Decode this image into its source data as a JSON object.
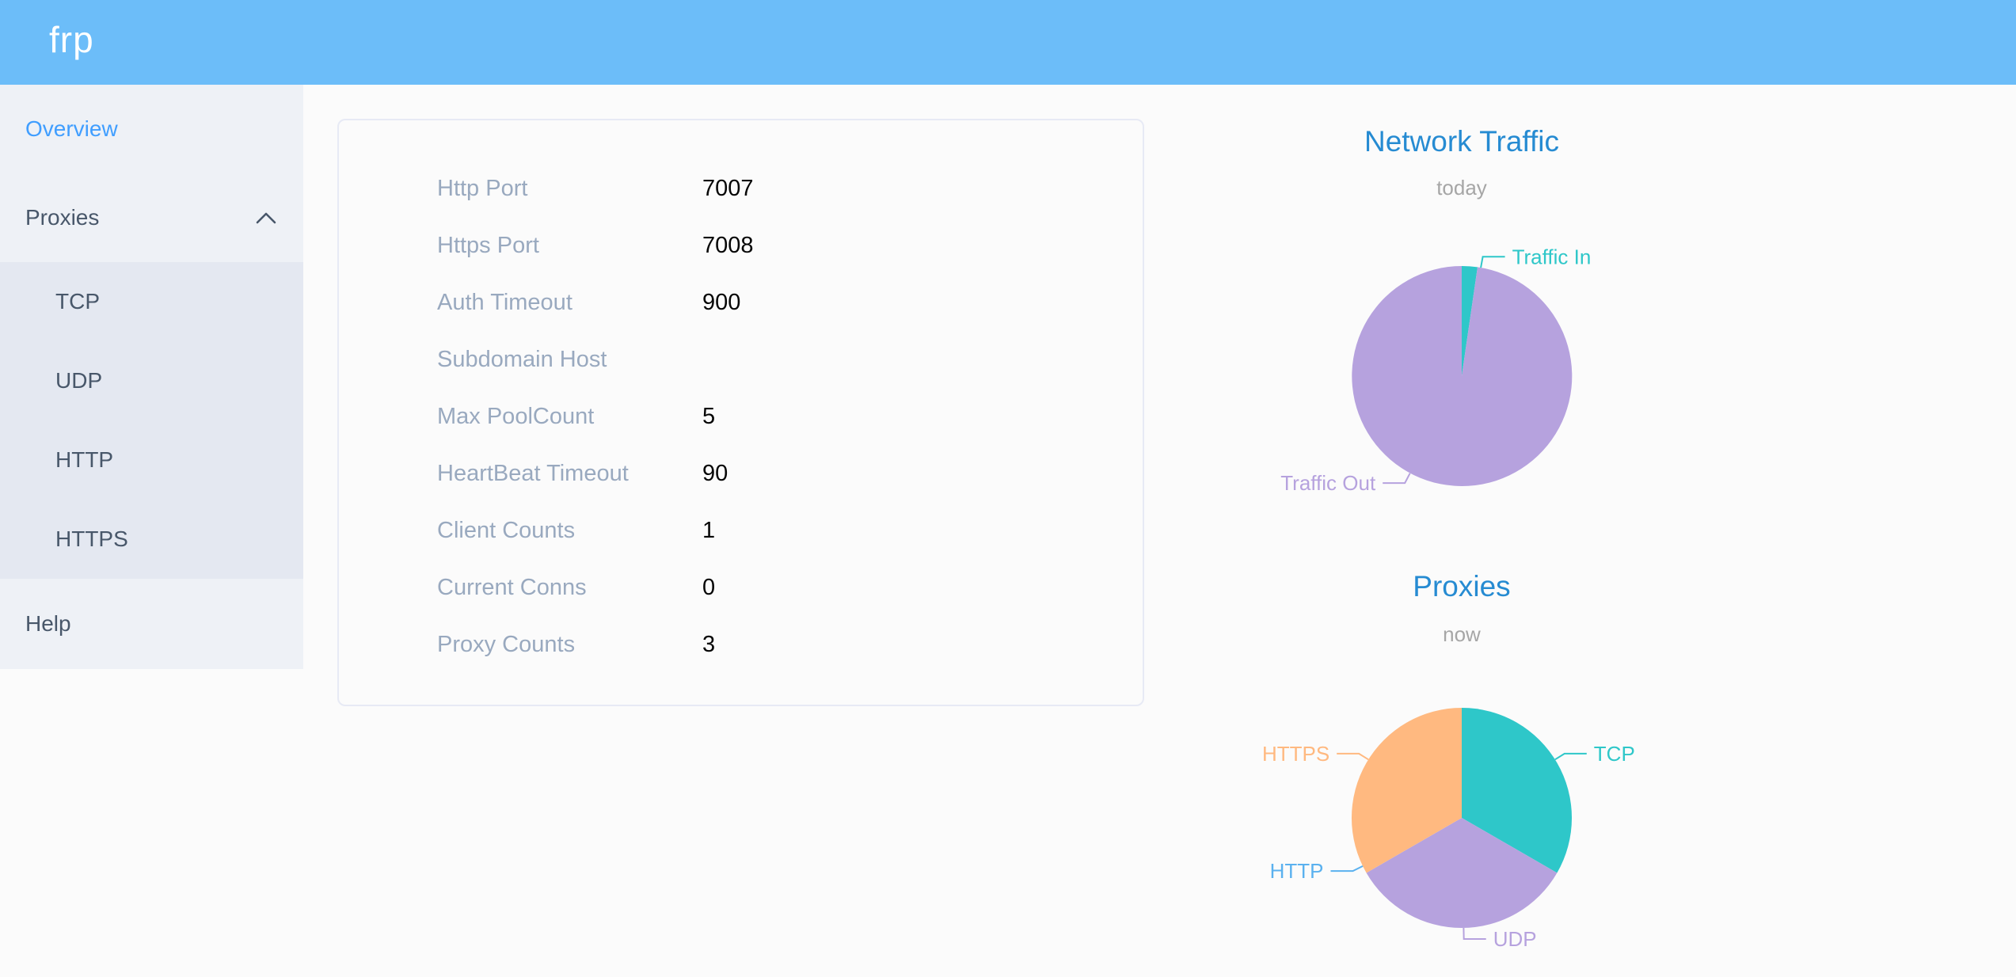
{
  "header": {
    "logo": "frp"
  },
  "icons": {
    "proxies_collapse": "chevron-up"
  },
  "colors": {
    "header_bg": "#6cbdf9",
    "sidebar_bg": "#eef1f6",
    "submenu_bg": "#e4e8f1",
    "menu_text": "#48576a",
    "menu_active": "#409eff",
    "chart_title": "#268bd2",
    "teal": "#2ec7c9",
    "purple": "#b6a2de",
    "blue": "#5ab1ef",
    "orange": "#ffb980"
  },
  "sidebar": {
    "items": [
      {
        "id": "overview",
        "label": "Overview",
        "active": true
      },
      {
        "id": "proxies",
        "label": "Proxies",
        "expanded": true,
        "children": [
          "TCP",
          "UDP",
          "HTTP",
          "HTTPS"
        ]
      },
      {
        "id": "help",
        "label": "Help"
      }
    ]
  },
  "server_info": {
    "rows": [
      {
        "label": "Http Port",
        "value": "7007"
      },
      {
        "label": "Https Port",
        "value": "7008"
      },
      {
        "label": "Auth Timeout",
        "value": "900"
      },
      {
        "label": "Subdomain Host",
        "value": ""
      },
      {
        "label": "Max PoolCount",
        "value": "5"
      },
      {
        "label": "HeartBeat Timeout",
        "value": "90"
      },
      {
        "label": "Client Counts",
        "value": "1"
      },
      {
        "label": "Current Conns",
        "value": "0"
      },
      {
        "label": "Proxy Counts",
        "value": "3"
      }
    ]
  },
  "chart_data": [
    {
      "type": "pie",
      "title": "Network Traffic",
      "subtitle": "today",
      "legend_position": "none",
      "value_unit": "percent-of-total (estimated from slice angles)",
      "slices": [
        {
          "label": "Traffic In",
          "value": 2.3,
          "color": "#2ec7c9",
          "label_angle": 10
        },
        {
          "label": "Traffic Out",
          "value": 97.7,
          "color": "#b6a2de",
          "label_angle": 208
        }
      ]
    },
    {
      "type": "pie",
      "title": "Proxies",
      "subtitle": "now",
      "legend_position": "none",
      "value_unit": "proxy count",
      "slices": [
        {
          "label": "TCP",
          "value": 1,
          "color": "#2ec7c9",
          "label_angle": 58
        },
        {
          "label": "UDP",
          "value": 1,
          "color": "#b6a2de",
          "label_angle": 179
        },
        {
          "label": "HTTP",
          "value": 0,
          "color": "#5ab1ef",
          "label_angle": 244
        },
        {
          "label": "HTTPS",
          "value": 1,
          "color": "#ffb980",
          "label_angle": 302
        }
      ]
    }
  ]
}
